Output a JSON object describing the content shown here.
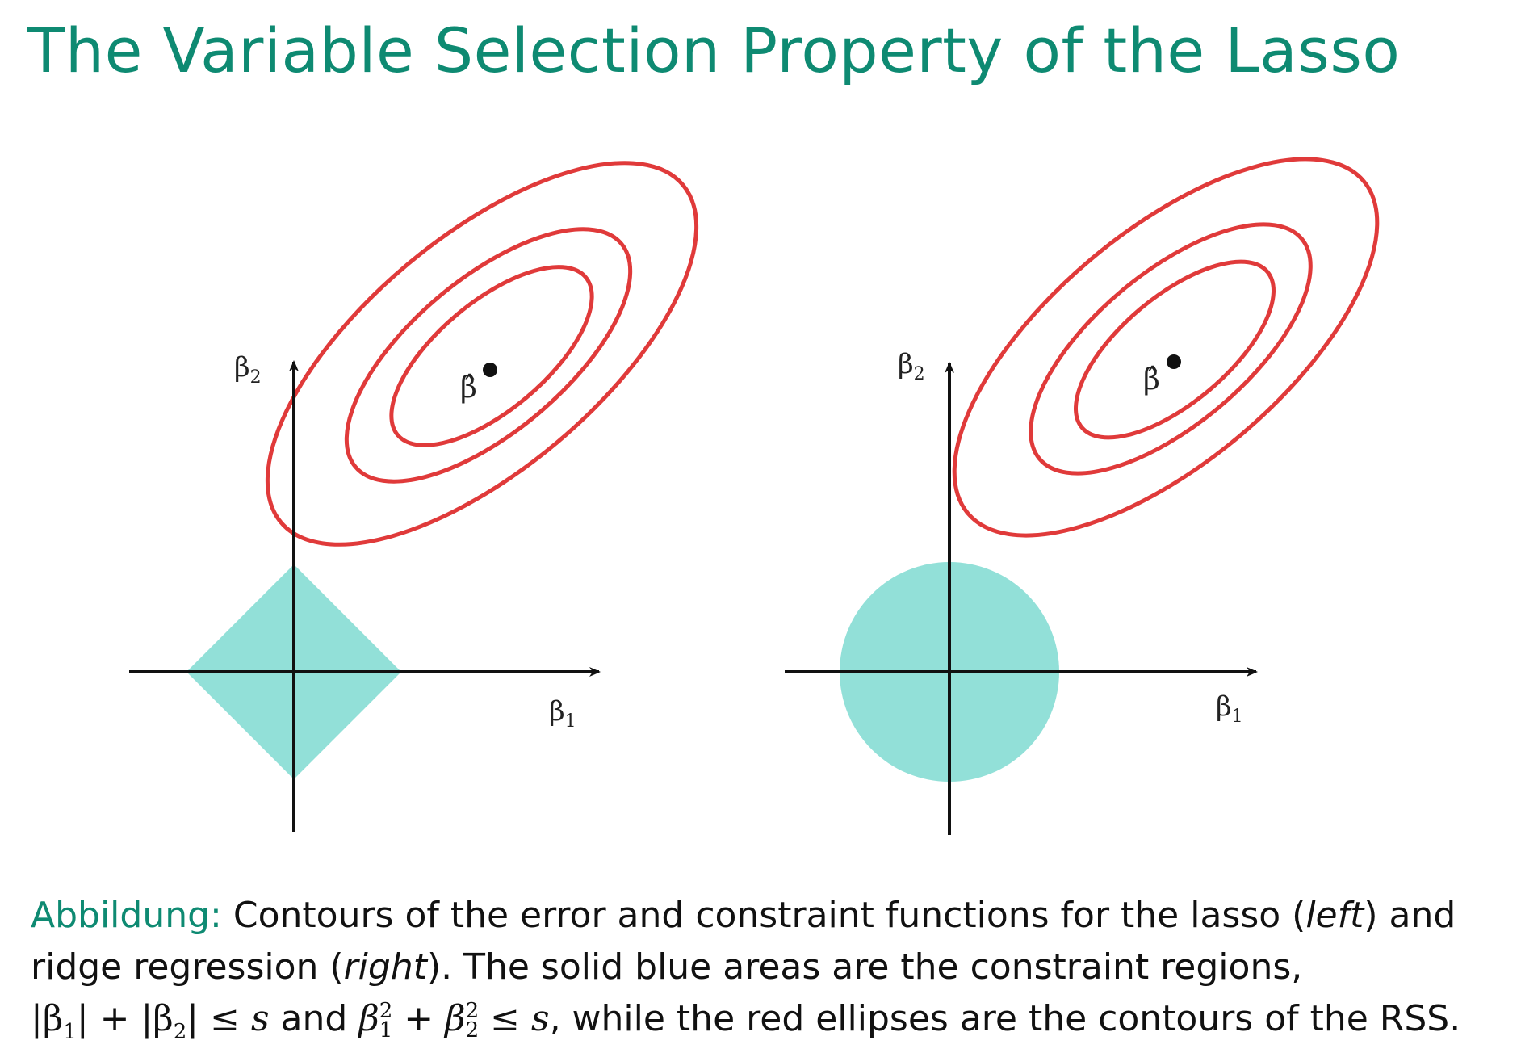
{
  "title": "The Variable Selection Property of the Lasso",
  "panels": [
    {
      "name": "lasso",
      "constraint_shape": "diamond",
      "x_axis_label": "β",
      "x_axis_subscript": "1",
      "y_axis_label": "β",
      "y_axis_subscript": "2",
      "estimate_label": "β̂"
    },
    {
      "name": "ridge",
      "constraint_shape": "circle",
      "x_axis_label": "β",
      "x_axis_subscript": "1",
      "y_axis_label": "β",
      "y_axis_subscript": "2",
      "estimate_label": "β̂"
    }
  ],
  "colors": {
    "title": "#0e8a72",
    "constraint_fill": "#92e0d8",
    "contour_stroke": "#e03a3a",
    "axis": "#111111"
  },
  "caption": {
    "lead": "Abbildung:",
    "part1": " Contours of the error and constraint functions for the lasso (",
    "left_word": "left",
    "part2": ") and ridge regression (",
    "right_word": "right",
    "part3": "). The solid blue areas are the constraint regions,",
    "abs_expr_a": "|β",
    "sub_1": "1",
    "abs_expr_b": "| + |β",
    "sub_2": "2",
    "abs_expr_c": "| ≤ ",
    "s1": "s",
    "and_word": " and ",
    "beta_a": "β",
    "sq_a": "2",
    "sub_a": "1",
    "plus": " + ",
    "beta_b": "β",
    "sq_b": "2",
    "sub_b": "2",
    "leq": " ≤ ",
    "s2": "s",
    "part4": ", while the red ellipses are the contours of the RSS."
  }
}
